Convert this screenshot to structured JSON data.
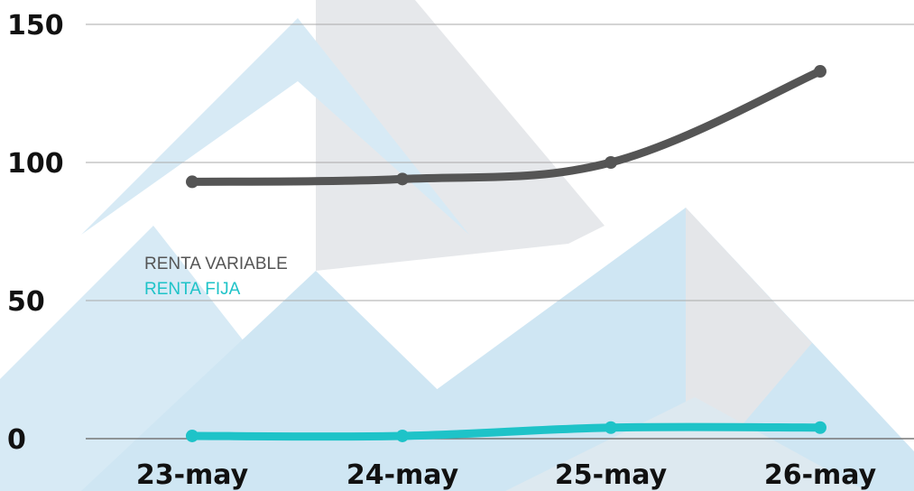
{
  "chart_data": {
    "type": "line",
    "categories": [
      "23-may",
      "24-may",
      "25-may",
      "26-may"
    ],
    "ylim": [
      0,
      150
    ],
    "yticks": [
      0,
      50,
      100,
      150
    ],
    "grid": true,
    "legend_position": "left",
    "series": [
      {
        "name": "RENTA VARIABLE",
        "color": "#555555",
        "values": [
          93,
          94,
          100,
          133
        ]
      },
      {
        "name": "RENTA FIJA",
        "color": "#1ec3c8",
        "values": [
          1,
          1,
          4,
          4
        ]
      }
    ]
  },
  "background_colors": {
    "watermark_blue": "#cfe6f3",
    "watermark_gray": "#e4e6e9"
  }
}
